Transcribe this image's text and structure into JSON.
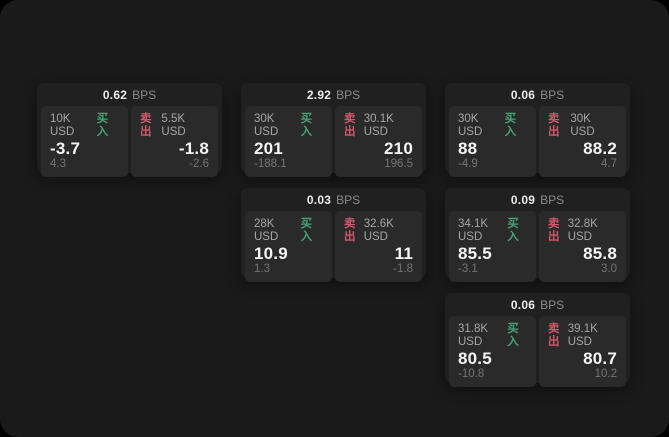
{
  "labels": {
    "unit": "BPS",
    "buy": "买入",
    "sell": "卖出"
  },
  "colors": {
    "buy_green": "#46a375",
    "sell_red": "#d4576b",
    "panel_bg": "#1a1a1b",
    "card_bg": "#202021",
    "tile_bg": "#2a2a2b"
  },
  "cards": [
    {
      "bps": "0.62",
      "buy_size": "10K USD",
      "buy_value": "-3.7",
      "buy_sub": "4.3",
      "sell_size": "5.5K USD",
      "sell_value": "-1.8",
      "sell_sub": "-2.6"
    },
    {
      "bps": "2.92",
      "buy_size": "30K USD",
      "buy_value": "201",
      "buy_sub": "-188.1",
      "sell_size": "30.1K USD",
      "sell_value": "210",
      "sell_sub": "196.5"
    },
    {
      "bps": "0.06",
      "buy_size": "30K USD",
      "buy_value": "88",
      "buy_sub": "-4.9",
      "sell_size": "30K USD",
      "sell_value": "88.2",
      "sell_sub": "4.7"
    },
    {
      "bps": "0.03",
      "buy_size": "28K USD",
      "buy_value": "10.9",
      "buy_sub": "1.3",
      "sell_size": "32.6K USD",
      "sell_value": "11",
      "sell_sub": "-1.8"
    },
    {
      "bps": "0.09",
      "buy_size": "34.1K USD",
      "buy_value": "85.5",
      "buy_sub": "-3.1",
      "sell_size": "32.8K USD",
      "sell_value": "85.8",
      "sell_sub": "3.0"
    },
    {
      "bps": "0.06",
      "buy_size": "31.8K USD",
      "buy_value": "80.5",
      "buy_sub": "-10.8",
      "sell_size": "39.1K USD",
      "sell_value": "80.7",
      "sell_sub": "10.2"
    }
  ]
}
